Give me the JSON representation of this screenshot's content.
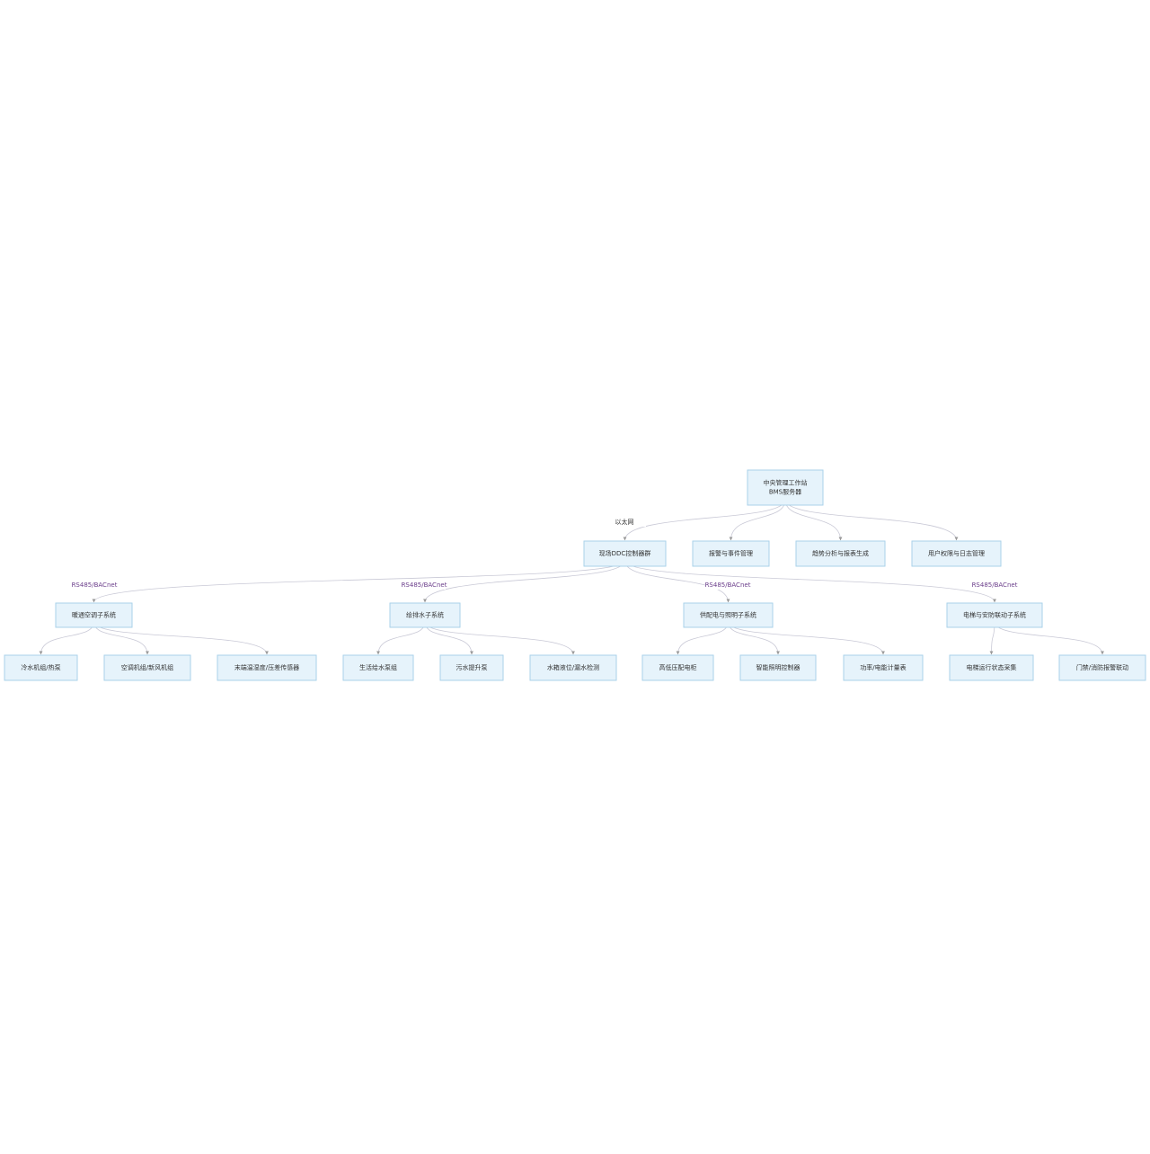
{
  "nodes": [
    {
      "lines": [
        "中央管理工作站",
        "BMS服务器"
      ]
    },
    {
      "lines": [
        "现场DDC控制器群"
      ]
    },
    {
      "lines": [
        "报警与事件管理"
      ]
    },
    {
      "lines": [
        "趋势分析与报表生成"
      ]
    },
    {
      "lines": [
        "用户权限与日志管理"
      ]
    },
    {
      "lines": [
        "暖通空调子系统"
      ]
    },
    {
      "lines": [
        "给排水子系统"
      ]
    },
    {
      "lines": [
        "供配电与照明子系统"
      ]
    },
    {
      "lines": [
        "电梯与安防联动子系统"
      ]
    },
    {
      "lines": [
        "冷水机组/热泵"
      ]
    },
    {
      "lines": [
        "空调机组/新风机组"
      ]
    },
    {
      "lines": [
        "末端温湿度/压差传感器"
      ]
    },
    {
      "lines": [
        "生活给水泵组"
      ]
    },
    {
      "lines": [
        "污水提升泵"
      ]
    },
    {
      "lines": [
        "水箱液位/漏水检测"
      ]
    },
    {
      "lines": [
        "高低压配电柜"
      ]
    },
    {
      "lines": [
        "智能照明控制器"
      ]
    },
    {
      "lines": [
        "功率/电能计量表"
      ]
    },
    {
      "lines": [
        "电梯运行状态采集"
      ]
    },
    {
      "lines": [
        "门禁/消防报警联动"
      ]
    }
  ],
  "edge_labels": [
    "以太网",
    "RS485/BACnet",
    "RS485/BACnet",
    "RS485/BACnet",
    "RS485/BACnet"
  ]
}
